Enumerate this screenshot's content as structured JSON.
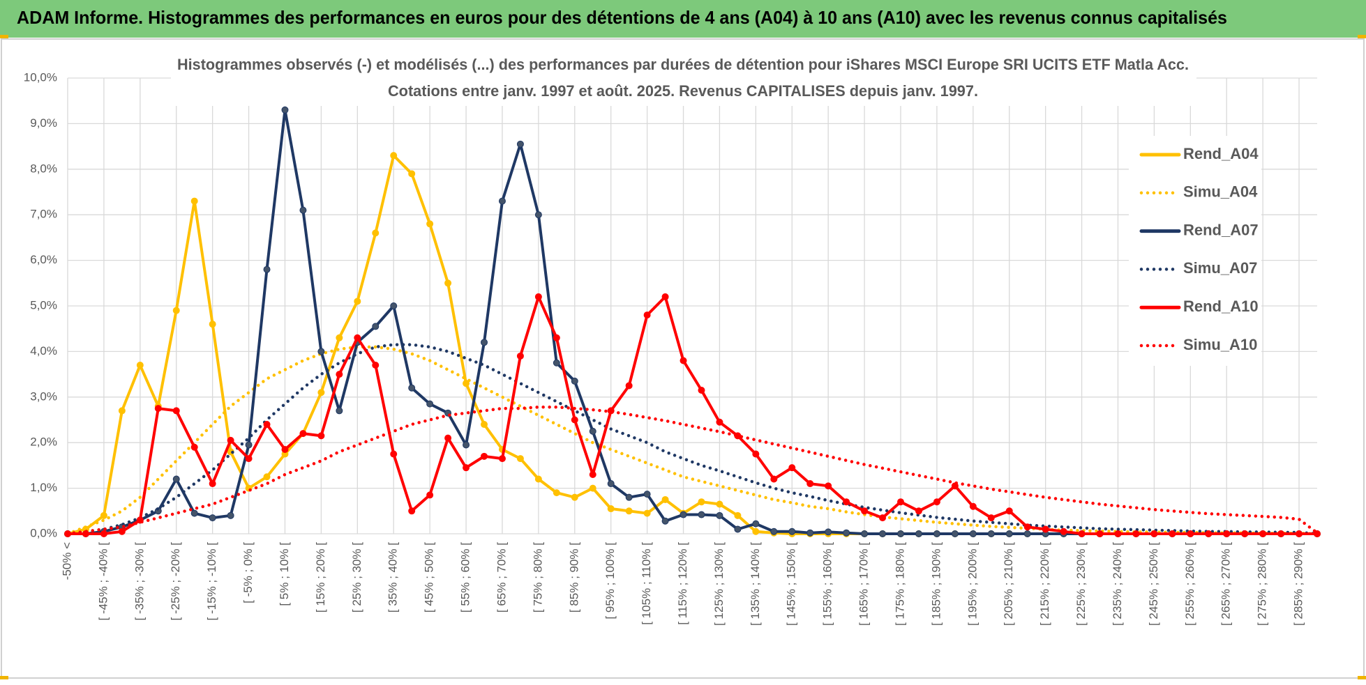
{
  "header": {
    "title": "ADAM Informe. Histogrammes des performances en euros pour des détentions de 4 ans (A04) à 10 ans (A10) avec les revenus connus capitalisés"
  },
  "chart_data": {
    "type": "line",
    "title": "Histogrammes observés (-) et modélisés (...) des performances par durées de détention pour iShares MSCI Europe SRI UCITS ETF Matla Acc.",
    "subtitle": "Cotations entre janv. 1997 et août. 2025. Revenus CAPITALISES depuis janv. 1997.",
    "categories": [
      "-50% <",
      null,
      "[ -45% ; -40% [",
      null,
      "[ -35% ; -30% [",
      null,
      "[ -25% ; -20% [",
      null,
      "[ -15% ; -10% [",
      null,
      "[ -5% ; 0% [",
      null,
      "[ 5% ; 10% [",
      null,
      "[ 15% ; 20% [",
      null,
      "[ 25% ; 30% [",
      null,
      "[ 35% ; 40% [",
      null,
      "[ 45% ; 50% [",
      null,
      "[ 55% ; 60% [",
      null,
      "[ 65% ; 70% [",
      null,
      "[ 75% ; 80% [",
      null,
      "[ 85% ; 90% [",
      null,
      "[ 95% ; 100% [",
      null,
      "[ 105% ; 110% [",
      null,
      "[ 115% ; 120% [",
      null,
      "[ 125% ; 130% [",
      null,
      "[ 135% ; 140% [",
      null,
      "[ 145% ; 150% [",
      null,
      "[ 155% ; 160% [",
      null,
      "[ 165% ; 170% [",
      null,
      "[ 175% ; 180% [",
      null,
      "[ 185% ; 190% [",
      null,
      "[ 195% ; 200% [",
      null,
      "[ 205% ; 210% [",
      null,
      "[ 215% ; 220% [",
      null,
      "[ 225% ; 230% [",
      null,
      "[ 235% ; 240% [",
      null,
      "[ 245% ; 250% [",
      null,
      "[ 255% ; 260% [",
      null,
      "[ 265% ; 270% [",
      null,
      "[ 275% ; 280% [",
      null,
      "[ 285% ; 290% [",
      null
    ],
    "series": [
      {
        "name": "Rend_A04",
        "color": "#ffc000",
        "style": "solid",
        "markers": true,
        "values": [
          0,
          0.1,
          0.4,
          2.7,
          3.7,
          2.8,
          4.9,
          7.3,
          4.6,
          1.8,
          1.0,
          1.25,
          1.75,
          2.2,
          3.1,
          4.3,
          5.1,
          6.6,
          8.3,
          7.9,
          6.8,
          5.5,
          3.3,
          2.4,
          1.85,
          1.65,
          1.2,
          0.9,
          0.8,
          1.0,
          0.55,
          0.5,
          0.45,
          0.75,
          0.45,
          0.7,
          0.65,
          0.4,
          0.05,
          0.02,
          0,
          0,
          0,
          0,
          0,
          0,
          0,
          0,
          0,
          0,
          0,
          0,
          0,
          0,
          0,
          0,
          0,
          0,
          0,
          0,
          0,
          0,
          0,
          0,
          0,
          0,
          0,
          0,
          0,
          0
        ]
      },
      {
        "name": "Simu_A04",
        "color": "#ffc000",
        "style": "dotted",
        "markers": false,
        "values": [
          0,
          0.15,
          0.3,
          0.5,
          0.8,
          1.2,
          1.6,
          2.0,
          2.4,
          2.8,
          3.1,
          3.4,
          3.6,
          3.8,
          3.95,
          4.05,
          4.1,
          4.1,
          4.05,
          3.95,
          3.8,
          3.6,
          3.4,
          3.2,
          3.0,
          2.8,
          2.6,
          2.4,
          2.2,
          2.0,
          1.85,
          1.7,
          1.55,
          1.4,
          1.25,
          1.15,
          1.05,
          0.95,
          0.85,
          0.75,
          0.68,
          0.6,
          0.55,
          0.48,
          0.42,
          0.37,
          0.33,
          0.29,
          0.25,
          0.22,
          0.19,
          0.16,
          0.14,
          0.12,
          0.1,
          0.08,
          0.07,
          0.06,
          0.05,
          0.04,
          0.04,
          0.03,
          0.03,
          0.02,
          0.02,
          0.02,
          0.01,
          0.01,
          0.01,
          0
        ]
      },
      {
        "name": "Rend_A07",
        "color": "#1f3864",
        "marker_color": "#44546a",
        "style": "solid",
        "markers": true,
        "values": [
          0,
          0,
          0.05,
          0.15,
          0.3,
          0.5,
          1.2,
          0.45,
          0.35,
          0.4,
          1.95,
          5.8,
          9.3,
          7.1,
          4.0,
          2.7,
          4.2,
          4.55,
          5.0,
          3.2,
          2.85,
          2.65,
          1.95,
          4.2,
          7.3,
          8.55,
          7.0,
          3.75,
          3.35,
          2.25,
          1.1,
          0.8,
          0.87,
          0.28,
          0.42,
          0.42,
          0.4,
          0.1,
          0.22,
          0.05,
          0.05,
          0.02,
          0.04,
          0.02,
          0,
          0,
          0,
          0,
          0,
          0,
          0,
          0,
          0,
          0,
          0,
          0,
          0,
          0,
          0,
          0,
          0,
          0,
          0,
          0,
          0,
          0,
          0,
          0,
          0,
          0
        ]
      },
      {
        "name": "Simu_A07",
        "color": "#1f3864",
        "style": "dotted",
        "markers": false,
        "values": [
          0,
          0.05,
          0.1,
          0.2,
          0.35,
          0.55,
          0.8,
          1.1,
          1.4,
          1.75,
          2.1,
          2.5,
          2.85,
          3.2,
          3.5,
          3.75,
          3.95,
          4.1,
          4.15,
          4.15,
          4.1,
          4.0,
          3.85,
          3.7,
          3.5,
          3.3,
          3.1,
          2.9,
          2.7,
          2.5,
          2.3,
          2.15,
          2.0,
          1.8,
          1.65,
          1.5,
          1.38,
          1.25,
          1.12,
          1.0,
          0.9,
          0.82,
          0.73,
          0.65,
          0.58,
          0.52,
          0.46,
          0.41,
          0.36,
          0.32,
          0.28,
          0.25,
          0.22,
          0.19,
          0.17,
          0.15,
          0.13,
          0.11,
          0.1,
          0.09,
          0.08,
          0.07,
          0.06,
          0.05,
          0.05,
          0.04,
          0.04,
          0.03,
          0.03,
          0
        ]
      },
      {
        "name": "Rend_A10",
        "color": "#ff0000",
        "style": "solid",
        "markers": true,
        "values": [
          0,
          0,
          0,
          0.05,
          0.3,
          2.75,
          2.7,
          1.9,
          1.1,
          2.05,
          1.65,
          2.4,
          1.85,
          2.2,
          2.15,
          3.5,
          4.3,
          3.7,
          1.75,
          0.5,
          0.85,
          2.1,
          1.45,
          1.7,
          1.65,
          3.9,
          5.2,
          4.3,
          2.5,
          1.3,
          2.7,
          3.25,
          4.8,
          5.2,
          3.8,
          3.15,
          2.45,
          2.15,
          1.75,
          1.2,
          1.45,
          1.1,
          1.05,
          0.7,
          0.5,
          0.35,
          0.7,
          0.5,
          0.7,
          1.05,
          0.6,
          0.35,
          0.5,
          0.15,
          0.1,
          0.05,
          0,
          0,
          0,
          0,
          0,
          0,
          0,
          0,
          0,
          0,
          0,
          0,
          0,
          0
        ]
      },
      {
        "name": "Simu_A10",
        "color": "#ff0000",
        "style": "dotted",
        "markers": false,
        "values": [
          0,
          0.05,
          0.1,
          0.15,
          0.25,
          0.35,
          0.45,
          0.55,
          0.65,
          0.8,
          0.95,
          1.1,
          1.3,
          1.45,
          1.6,
          1.8,
          1.95,
          2.1,
          2.25,
          2.4,
          2.5,
          2.6,
          2.65,
          2.7,
          2.75,
          2.75,
          2.78,
          2.78,
          2.75,
          2.72,
          2.68,
          2.62,
          2.55,
          2.48,
          2.4,
          2.32,
          2.24,
          2.15,
          2.06,
          1.97,
          1.88,
          1.79,
          1.7,
          1.61,
          1.52,
          1.44,
          1.36,
          1.28,
          1.2,
          1.12,
          1.05,
          0.98,
          0.92,
          0.86,
          0.8,
          0.75,
          0.7,
          0.65,
          0.61,
          0.57,
          0.53,
          0.5,
          0.47,
          0.44,
          0.42,
          0.4,
          0.38,
          0.36,
          0.32,
          0.02
        ]
      }
    ],
    "ylim": [
      0,
      10
    ],
    "yticks": [
      {
        "value": 0,
        "label": "0,0%"
      },
      {
        "value": 1,
        "label": "1,0%"
      },
      {
        "value": 2,
        "label": "2,0%"
      },
      {
        "value": 3,
        "label": "3,0%"
      },
      {
        "value": 4,
        "label": "4,0%"
      },
      {
        "value": 5,
        "label": "5,0%"
      },
      {
        "value": 6,
        "label": "6,0%"
      },
      {
        "value": 7,
        "label": "7,0%"
      },
      {
        "value": 8,
        "label": "8,0%"
      },
      {
        "value": 9,
        "label": "9,0%"
      },
      {
        "value": 10,
        "label": "10,0%"
      }
    ],
    "grid": true,
    "legend": "right"
  }
}
